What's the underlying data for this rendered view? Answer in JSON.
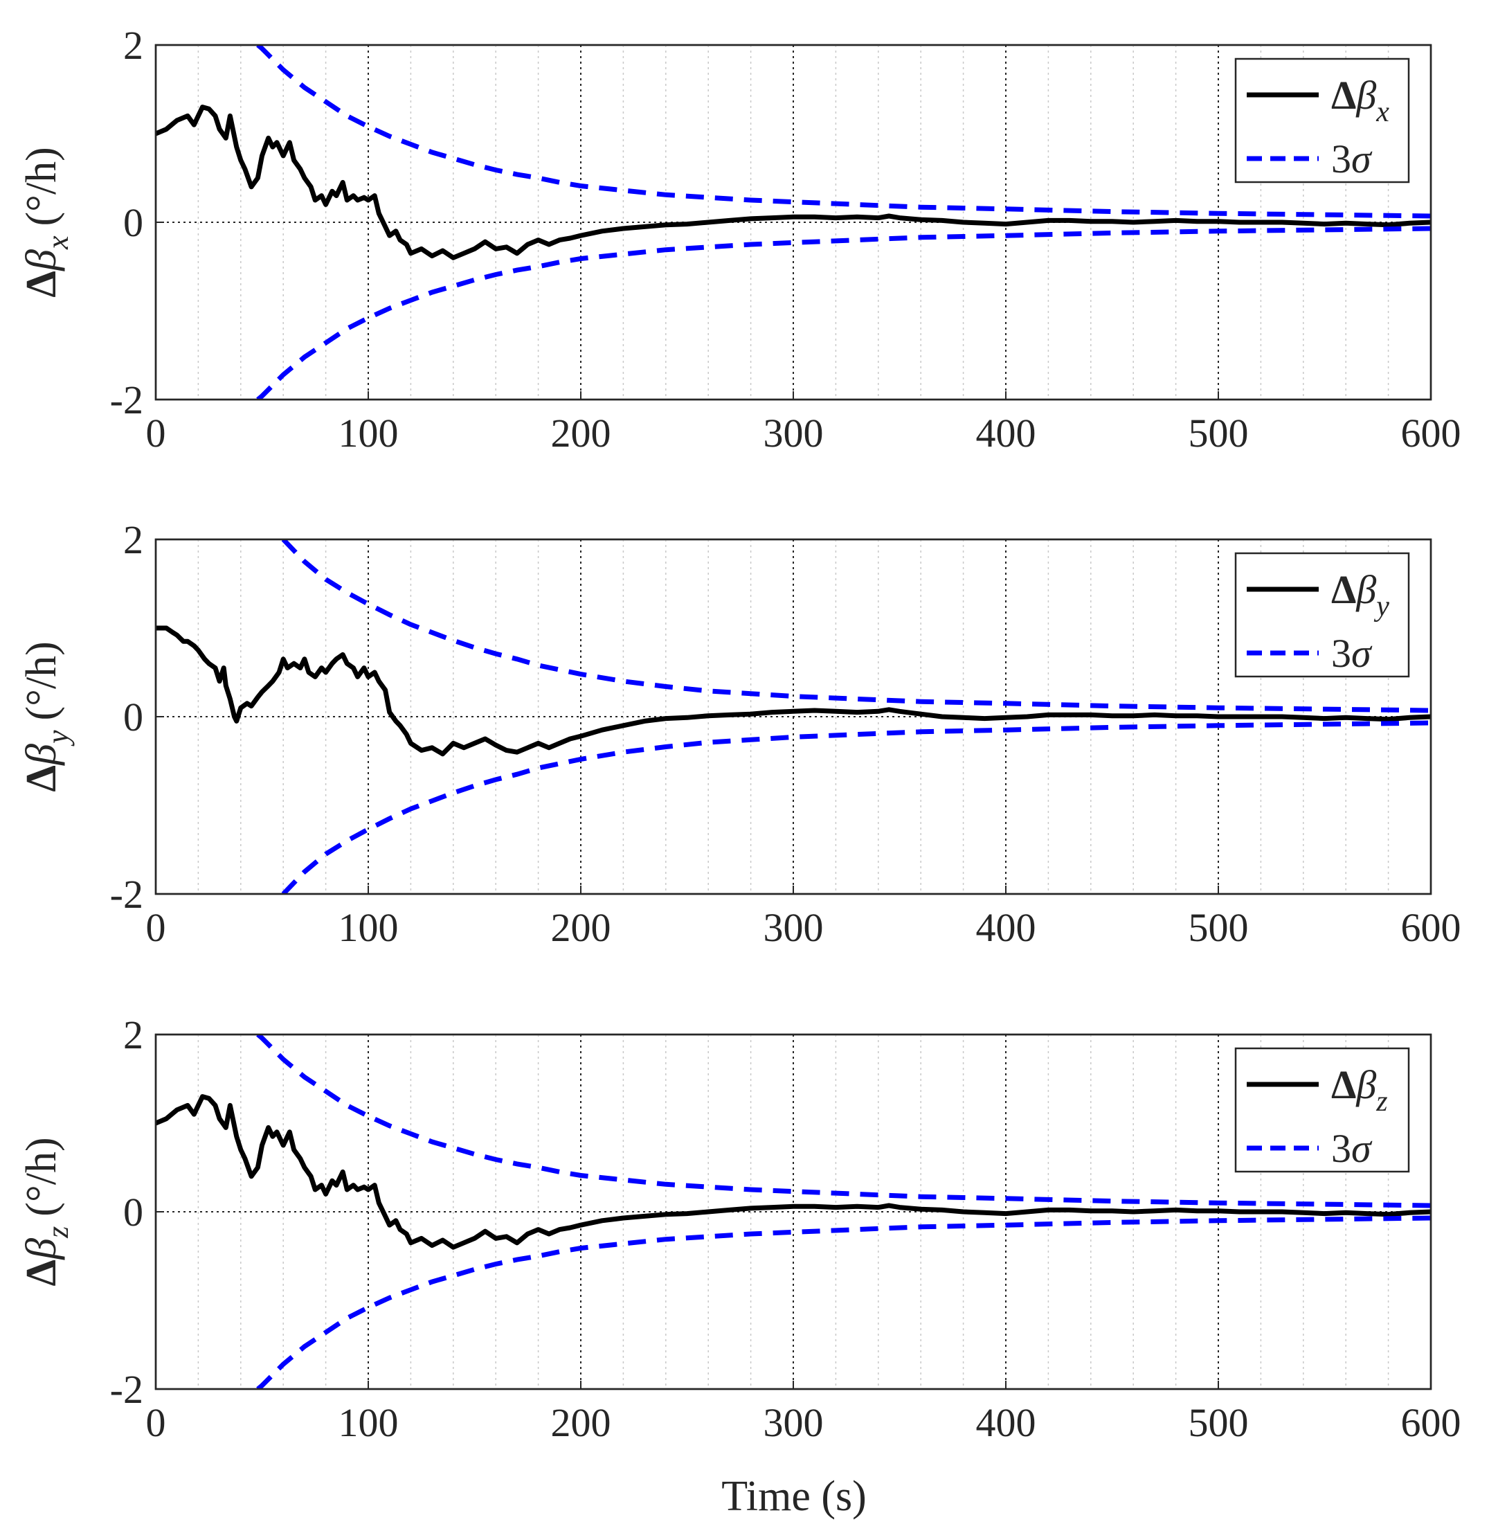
{
  "figure": {
    "xlabel": "Time (s)"
  },
  "chart_data": [
    {
      "type": "line",
      "panel": "x",
      "ylabel": {
        "main": "Δβ",
        "sub": "x",
        "unit": "(°/h)"
      },
      "xlim": [
        0,
        600
      ],
      "ylim": [
        -2,
        2
      ],
      "xticks": [
        0,
        100,
        200,
        300,
        400,
        500,
        600
      ],
      "xtick_labels": [
        "0",
        "100",
        "200",
        "300",
        "400",
        "500",
        "600"
      ],
      "yticks": [
        -2,
        0,
        2
      ],
      "ytick_labels": [
        "-2",
        "0",
        "2"
      ],
      "x_minor_step": 20,
      "grid": "major+minor vertical, dotted",
      "legend_position": "top-right",
      "legend": [
        {
          "main": "Δβ",
          "sub": "x"
        },
        {
          "main": "3σ",
          "sub": ""
        }
      ],
      "series": [
        {
          "name": "Δβx",
          "color": "#000000",
          "style": "solid",
          "x": [
            0,
            5,
            10,
            15,
            18,
            20,
            22,
            25,
            28,
            30,
            33,
            35,
            38,
            40,
            42,
            45,
            48,
            50,
            53,
            55,
            57,
            60,
            63,
            65,
            68,
            70,
            73,
            75,
            78,
            80,
            83,
            85,
            88,
            90,
            93,
            95,
            98,
            100,
            103,
            105,
            108,
            110,
            113,
            115,
            118,
            120,
            125,
            130,
            135,
            140,
            145,
            150,
            155,
            160,
            165,
            170,
            175,
            180,
            185,
            190,
            195,
            200,
            210,
            220,
            230,
            240,
            250,
            260,
            270,
            280,
            290,
            300,
            310,
            320,
            330,
            340,
            345,
            350,
            360,
            370,
            380,
            390,
            400,
            410,
            420,
            430,
            440,
            450,
            460,
            470,
            480,
            490,
            500,
            510,
            520,
            530,
            540,
            550,
            560,
            570,
            580,
            590,
            600
          ],
          "y": [
            1.0,
            1.05,
            1.15,
            1.2,
            1.1,
            1.2,
            1.3,
            1.28,
            1.2,
            1.05,
            0.95,
            1.2,
            0.85,
            0.7,
            0.6,
            0.4,
            0.5,
            0.75,
            0.95,
            0.85,
            0.9,
            0.75,
            0.9,
            0.7,
            0.6,
            0.5,
            0.4,
            0.25,
            0.3,
            0.2,
            0.35,
            0.3,
            0.45,
            0.25,
            0.3,
            0.25,
            0.28,
            0.25,
            0.3,
            0.1,
            -0.05,
            -0.15,
            -0.1,
            -0.2,
            -0.25,
            -0.35,
            -0.3,
            -0.38,
            -0.32,
            -0.4,
            -0.35,
            -0.3,
            -0.22,
            -0.3,
            -0.28,
            -0.35,
            -0.25,
            -0.2,
            -0.25,
            -0.2,
            -0.18,
            -0.15,
            -0.1,
            -0.07,
            -0.05,
            -0.03,
            -0.02,
            0.0,
            0.02,
            0.04,
            0.05,
            0.06,
            0.06,
            0.05,
            0.06,
            0.05,
            0.07,
            0.05,
            0.03,
            0.02,
            0.0,
            -0.01,
            -0.02,
            0.0,
            0.02,
            0.02,
            0.01,
            0.01,
            0.0,
            0.01,
            0.02,
            0.01,
            0.01,
            0.0,
            0.0,
            0.0,
            -0.01,
            -0.02,
            -0.01,
            -0.02,
            -0.03,
            -0.01,
            0.0
          ]
        },
        {
          "name": "3σ",
          "color": "#0000ff",
          "style": "dashed",
          "x": [
            48,
            50,
            60,
            70,
            80,
            90,
            100,
            110,
            120,
            130,
            140,
            150,
            160,
            170,
            180,
            190,
            200,
            220,
            240,
            260,
            280,
            300,
            320,
            340,
            360,
            380,
            400,
            450,
            500,
            550,
            600
          ],
          "y": [
            2.0,
            1.96,
            1.72,
            1.52,
            1.36,
            1.2,
            1.08,
            0.97,
            0.88,
            0.79,
            0.72,
            0.65,
            0.59,
            0.54,
            0.5,
            0.45,
            0.41,
            0.36,
            0.31,
            0.28,
            0.25,
            0.23,
            0.21,
            0.19,
            0.17,
            0.16,
            0.15,
            0.12,
            0.1,
            0.085,
            0.07
          ],
          "symmetric": true
        }
      ]
    },
    {
      "type": "line",
      "panel": "y",
      "ylabel": {
        "main": "Δβ",
        "sub": "y",
        "unit": "(°/h)"
      },
      "xlim": [
        0,
        600
      ],
      "ylim": [
        -2,
        2
      ],
      "xticks": [
        0,
        100,
        200,
        300,
        400,
        500,
        600
      ],
      "xtick_labels": [
        "0",
        "100",
        "200",
        "300",
        "400",
        "500",
        "600"
      ],
      "yticks": [
        -2,
        0,
        2
      ],
      "ytick_labels": [
        "-2",
        "0",
        "2"
      ],
      "x_minor_step": 20,
      "grid": "major+minor vertical, dotted",
      "legend_position": "top-right",
      "legend": [
        {
          "main": "Δβ",
          "sub": "y"
        },
        {
          "main": "3σ",
          "sub": ""
        }
      ],
      "series": [
        {
          "name": "Δβy",
          "color": "#000000",
          "style": "solid",
          "x": [
            0,
            5,
            8,
            10,
            13,
            15,
            18,
            20,
            23,
            25,
            28,
            30,
            32,
            33,
            35,
            37,
            38,
            40,
            43,
            45,
            48,
            50,
            53,
            55,
            58,
            60,
            62,
            65,
            68,
            70,
            72,
            75,
            78,
            80,
            83,
            85,
            88,
            90,
            93,
            95,
            98,
            100,
            103,
            105,
            108,
            110,
            113,
            115,
            118,
            120,
            125,
            130,
            135,
            140,
            145,
            150,
            155,
            160,
            165,
            170,
            175,
            180,
            185,
            190,
            195,
            200,
            210,
            220,
            230,
            240,
            250,
            260,
            270,
            280,
            290,
            300,
            310,
            320,
            330,
            340,
            345,
            350,
            360,
            370,
            380,
            390,
            400,
            410,
            420,
            430,
            440,
            450,
            460,
            470,
            480,
            490,
            500,
            510,
            520,
            530,
            540,
            550,
            560,
            570,
            580,
            590,
            600
          ],
          "y": [
            1.0,
            1.0,
            0.95,
            0.92,
            0.85,
            0.85,
            0.8,
            0.75,
            0.65,
            0.6,
            0.55,
            0.4,
            0.55,
            0.35,
            0.2,
            0.0,
            -0.05,
            0.1,
            0.15,
            0.12,
            0.22,
            0.28,
            0.35,
            0.4,
            0.5,
            0.65,
            0.55,
            0.6,
            0.55,
            0.65,
            0.5,
            0.45,
            0.55,
            0.5,
            0.6,
            0.65,
            0.7,
            0.6,
            0.55,
            0.45,
            0.55,
            0.45,
            0.5,
            0.4,
            0.3,
            0.05,
            -0.05,
            -0.1,
            -0.2,
            -0.3,
            -0.38,
            -0.35,
            -0.42,
            -0.3,
            -0.35,
            -0.3,
            -0.25,
            -0.32,
            -0.38,
            -0.4,
            -0.35,
            -0.3,
            -0.35,
            -0.3,
            -0.25,
            -0.22,
            -0.15,
            -0.1,
            -0.05,
            -0.02,
            -0.01,
            0.01,
            0.02,
            0.03,
            0.05,
            0.06,
            0.07,
            0.06,
            0.05,
            0.06,
            0.08,
            0.06,
            0.03,
            0.0,
            -0.01,
            -0.02,
            -0.01,
            0.0,
            0.02,
            0.02,
            0.02,
            0.01,
            0.01,
            0.02,
            0.01,
            0.01,
            0.0,
            0.0,
            0.0,
            0.0,
            -0.01,
            -0.02,
            -0.01,
            -0.02,
            -0.03,
            -0.01,
            0.0
          ]
        },
        {
          "name": "3σ",
          "color": "#0000ff",
          "style": "dashed",
          "x": [
            60,
            70,
            80,
            90,
            100,
            110,
            120,
            130,
            140,
            150,
            160,
            170,
            180,
            190,
            200,
            220,
            240,
            260,
            280,
            300,
            320,
            340,
            360,
            380,
            400,
            450,
            500,
            550,
            600
          ],
          "y": [
            2.0,
            1.75,
            1.55,
            1.4,
            1.27,
            1.15,
            1.04,
            0.95,
            0.86,
            0.78,
            0.71,
            0.65,
            0.58,
            0.53,
            0.48,
            0.4,
            0.34,
            0.29,
            0.26,
            0.23,
            0.21,
            0.19,
            0.17,
            0.16,
            0.15,
            0.12,
            0.1,
            0.085,
            0.07
          ],
          "symmetric": true
        }
      ]
    },
    {
      "type": "line",
      "panel": "z",
      "ylabel": {
        "main": "Δβ",
        "sub": "z",
        "unit": "(°/h)"
      },
      "xlim": [
        0,
        600
      ],
      "ylim": [
        -2,
        2
      ],
      "xticks": [
        0,
        100,
        200,
        300,
        400,
        500,
        600
      ],
      "xtick_labels": [
        "0",
        "100",
        "200",
        "300",
        "400",
        "500",
        "600"
      ],
      "yticks": [
        -2,
        0,
        2
      ],
      "ytick_labels": [
        "-2",
        "0",
        "2"
      ],
      "x_minor_step": 20,
      "grid": "major+minor vertical, dotted",
      "legend_position": "top-right",
      "legend": [
        {
          "main": "Δβ",
          "sub": "z"
        },
        {
          "main": "3σ",
          "sub": ""
        }
      ],
      "series": [
        {
          "name": "Δβz",
          "color": "#000000",
          "style": "solid",
          "x": [
            0,
            5,
            10,
            15,
            18,
            20,
            22,
            25,
            28,
            30,
            33,
            35,
            38,
            40,
            42,
            45,
            48,
            50,
            53,
            55,
            57,
            60,
            63,
            65,
            68,
            70,
            73,
            75,
            78,
            80,
            83,
            85,
            88,
            90,
            93,
            95,
            98,
            100,
            103,
            105,
            108,
            110,
            113,
            115,
            118,
            120,
            125,
            130,
            135,
            140,
            145,
            150,
            155,
            160,
            165,
            170,
            175,
            180,
            185,
            190,
            195,
            200,
            210,
            220,
            230,
            240,
            250,
            260,
            270,
            280,
            290,
            300,
            310,
            320,
            330,
            340,
            345,
            350,
            360,
            370,
            380,
            390,
            400,
            410,
            420,
            430,
            440,
            450,
            460,
            470,
            480,
            490,
            500,
            510,
            520,
            530,
            540,
            550,
            560,
            570,
            580,
            590,
            600
          ],
          "y": [
            1.0,
            1.05,
            1.15,
            1.2,
            1.1,
            1.2,
            1.3,
            1.28,
            1.2,
            1.05,
            0.95,
            1.2,
            0.85,
            0.7,
            0.6,
            0.4,
            0.5,
            0.75,
            0.95,
            0.85,
            0.9,
            0.75,
            0.9,
            0.7,
            0.6,
            0.5,
            0.4,
            0.25,
            0.3,
            0.2,
            0.35,
            0.3,
            0.45,
            0.25,
            0.3,
            0.25,
            0.28,
            0.25,
            0.3,
            0.1,
            -0.05,
            -0.15,
            -0.1,
            -0.2,
            -0.25,
            -0.35,
            -0.3,
            -0.38,
            -0.32,
            -0.4,
            -0.35,
            -0.3,
            -0.22,
            -0.3,
            -0.28,
            -0.35,
            -0.25,
            -0.2,
            -0.25,
            -0.2,
            -0.18,
            -0.15,
            -0.1,
            -0.07,
            -0.05,
            -0.03,
            -0.02,
            0.0,
            0.02,
            0.04,
            0.05,
            0.06,
            0.06,
            0.05,
            0.06,
            0.05,
            0.07,
            0.05,
            0.03,
            0.02,
            0.0,
            -0.01,
            -0.02,
            0.0,
            0.02,
            0.02,
            0.01,
            0.01,
            0.0,
            0.01,
            0.02,
            0.01,
            0.01,
            0.0,
            0.0,
            0.0,
            -0.01,
            -0.02,
            -0.01,
            -0.02,
            -0.03,
            -0.01,
            0.0
          ]
        },
        {
          "name": "3σ",
          "color": "#0000ff",
          "style": "dashed",
          "x": [
            48,
            50,
            60,
            70,
            80,
            90,
            100,
            110,
            120,
            130,
            140,
            150,
            160,
            170,
            180,
            190,
            200,
            220,
            240,
            260,
            280,
            300,
            320,
            340,
            360,
            380,
            400,
            450,
            500,
            550,
            600
          ],
          "y": [
            2.0,
            1.96,
            1.72,
            1.52,
            1.36,
            1.2,
            1.08,
            0.97,
            0.88,
            0.79,
            0.72,
            0.65,
            0.59,
            0.54,
            0.5,
            0.45,
            0.41,
            0.36,
            0.31,
            0.28,
            0.25,
            0.23,
            0.21,
            0.19,
            0.17,
            0.16,
            0.15,
            0.12,
            0.1,
            0.085,
            0.07
          ],
          "symmetric": true
        }
      ]
    }
  ]
}
